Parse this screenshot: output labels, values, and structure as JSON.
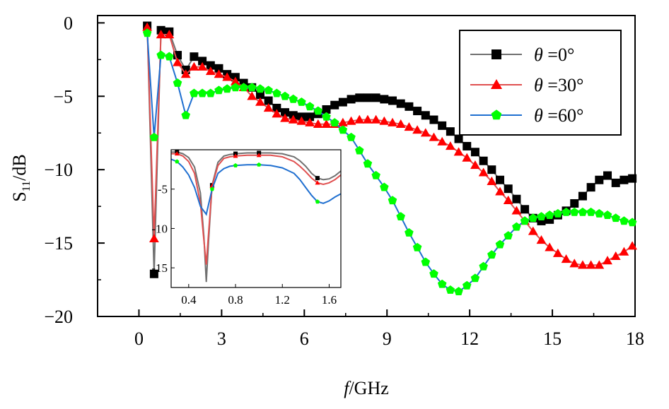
{
  "chart_data": {
    "type": "line",
    "xlabel_italic": "f",
    "xlabel_rest": "/GHz",
    "ylabel_main": "S",
    "ylabel_sub": "11",
    "ylabel_rest": "/dB",
    "xlim": [
      -1.5,
      18
    ],
    "ylim": [
      -20,
      0.5
    ],
    "xticks": [
      0,
      3,
      6,
      9,
      12,
      15,
      18
    ],
    "yticks": [
      0,
      -5,
      -10,
      -15,
      -20
    ],
    "xtick_labels": [
      "0",
      "3",
      "6",
      "9",
      "12",
      "15",
      "18"
    ],
    "ytick_labels": [
      "0",
      "−5",
      "−10",
      "−15",
      "−20"
    ],
    "legend_position": "top-right",
    "legend": [
      {
        "theta": "θ",
        "value": " =0°"
      },
      {
        "theta": "θ",
        "value": " =30°"
      },
      {
        "theta": "θ",
        "value": " =60°"
      }
    ],
    "series": [
      {
        "name": "θ =0°",
        "line_color": "#707070",
        "marker_color": "#000000",
        "marker": "square",
        "x": [
          0.3,
          0.55,
          0.8,
          1.1,
          1.4,
          1.7,
          2.0,
          2.3,
          2.6,
          2.9,
          3.2,
          3.5,
          3.8,
          4.1,
          4.4,
          4.7,
          5.0,
          5.3,
          5.6,
          5.9,
          6.2,
          6.5,
          6.8,
          7.1,
          7.4,
          7.7,
          8.0,
          8.3,
          8.6,
          8.9,
          9.2,
          9.5,
          9.8,
          10.1,
          10.4,
          10.7,
          11.0,
          11.3,
          11.6,
          11.9,
          12.2,
          12.5,
          12.8,
          13.1,
          13.4,
          13.7,
          14.0,
          14.3,
          14.6,
          14.9,
          15.2,
          15.5,
          15.8,
          16.1,
          16.4,
          16.7,
          17.0,
          17.3,
          17.6,
          17.9
        ],
        "y": [
          -0.2,
          -17.1,
          -0.5,
          -0.6,
          -2.2,
          -3.2,
          -2.3,
          -2.6,
          -2.9,
          -3.1,
          -3.5,
          -3.7,
          -4.1,
          -4.4,
          -4.9,
          -5.3,
          -5.8,
          -6.1,
          -6.3,
          -6.4,
          -6.4,
          -6.2,
          -5.9,
          -5.6,
          -5.4,
          -5.2,
          -5.1,
          -5.1,
          -5.1,
          -5.2,
          -5.3,
          -5.5,
          -5.7,
          -6.0,
          -6.3,
          -6.6,
          -7.0,
          -7.4,
          -7.9,
          -8.4,
          -8.8,
          -9.4,
          -10.0,
          -10.7,
          -11.3,
          -12.0,
          -12.7,
          -13.3,
          -13.5,
          -13.4,
          -13.1,
          -12.8,
          -12.3,
          -11.8,
          -11.2,
          -10.7,
          -10.4,
          -10.9,
          -10.7,
          -10.6
        ]
      },
      {
        "name": "θ =30°",
        "line_color": "#e05050",
        "marker_color": "#ff0000",
        "marker": "triangle",
        "x": [
          0.3,
          0.55,
          0.8,
          1.1,
          1.4,
          1.7,
          2.0,
          2.3,
          2.6,
          2.9,
          3.2,
          3.5,
          3.8,
          4.1,
          4.4,
          4.7,
          5.0,
          5.3,
          5.6,
          5.9,
          6.2,
          6.5,
          6.8,
          7.1,
          7.4,
          7.7,
          8.0,
          8.3,
          8.6,
          8.9,
          9.2,
          9.5,
          9.8,
          10.1,
          10.4,
          10.7,
          11.0,
          11.3,
          11.6,
          11.9,
          12.2,
          12.5,
          12.8,
          13.1,
          13.4,
          13.7,
          14.0,
          14.3,
          14.6,
          14.9,
          15.2,
          15.5,
          15.8,
          16.1,
          16.4,
          16.7,
          17.0,
          17.3,
          17.6,
          17.9
        ],
        "y": [
          -0.3,
          -14.7,
          -0.8,
          -0.8,
          -2.7,
          -3.5,
          -3.0,
          -3.0,
          -3.3,
          -3.5,
          -3.7,
          -4.0,
          -4.4,
          -5.0,
          -5.4,
          -5.8,
          -6.2,
          -6.5,
          -6.6,
          -6.7,
          -6.8,
          -6.9,
          -6.9,
          -6.9,
          -6.8,
          -6.7,
          -6.6,
          -6.6,
          -6.6,
          -6.7,
          -6.8,
          -6.9,
          -7.1,
          -7.3,
          -7.5,
          -7.8,
          -8.1,
          -8.4,
          -8.8,
          -9.2,
          -9.7,
          -10.2,
          -10.8,
          -11.5,
          -12.1,
          -12.8,
          -13.5,
          -14.2,
          -14.8,
          -15.3,
          -15.7,
          -16.1,
          -16.4,
          -16.5,
          -16.5,
          -16.5,
          -16.2,
          -15.9,
          -15.6,
          -15.2
        ]
      },
      {
        "name": "θ =60°",
        "line_color": "#1f6fd0",
        "marker_color": "#00ff00",
        "marker": "pentagon",
        "x": [
          0.3,
          0.55,
          0.8,
          1.1,
          1.4,
          1.7,
          2.0,
          2.3,
          2.6,
          2.9,
          3.2,
          3.5,
          3.8,
          4.1,
          4.4,
          4.7,
          5.0,
          5.3,
          5.6,
          5.9,
          6.2,
          6.5,
          6.8,
          7.1,
          7.4,
          7.7,
          8.0,
          8.3,
          8.6,
          8.9,
          9.2,
          9.5,
          9.8,
          10.1,
          10.4,
          10.7,
          11.0,
          11.3,
          11.6,
          11.9,
          12.2,
          12.5,
          12.8,
          13.1,
          13.4,
          13.7,
          14.0,
          14.3,
          14.6,
          14.9,
          15.2,
          15.5,
          15.8,
          16.1,
          16.4,
          16.7,
          17.0,
          17.3,
          17.6,
          17.9
        ],
        "y": [
          -0.7,
          -7.8,
          -2.2,
          -2.3,
          -4.1,
          -6.3,
          -4.8,
          -4.8,
          -4.8,
          -4.6,
          -4.5,
          -4.4,
          -4.4,
          -4.4,
          -4.5,
          -4.6,
          -4.8,
          -5.0,
          -5.2,
          -5.4,
          -5.7,
          -6.0,
          -6.4,
          -6.8,
          -7.3,
          -7.8,
          -8.7,
          -9.6,
          -10.4,
          -11.2,
          -12.1,
          -13.2,
          -14.3,
          -15.3,
          -16.3,
          -17.1,
          -17.8,
          -18.2,
          -18.3,
          -17.9,
          -17.4,
          -16.6,
          -15.8,
          -15.1,
          -14.5,
          -13.9,
          -13.5,
          -13.3,
          -13.2,
          -13.1,
          -13.0,
          -12.9,
          -12.9,
          -12.9,
          -12.9,
          -13.0,
          -13.1,
          -13.3,
          -13.5,
          -13.6
        ]
      }
    ],
    "inset": {
      "xlim": [
        0.25,
        1.7
      ],
      "ylim": [
        -17.5,
        0
      ],
      "xticks": [
        0.4,
        0.8,
        1.2,
        1.6
      ],
      "yticks": [
        -5,
        -10,
        -15
      ],
      "xtick_labels": [
        "0.4",
        "0.8",
        "1.2",
        "1.6"
      ],
      "ytick_labels": [
        "-5",
        "-10",
        "-15"
      ],
      "series": [
        {
          "line_color": "#707070",
          "marker_color": "#000000",
          "marker": "square",
          "x": [
            0.25,
            0.3,
            0.35,
            0.4,
            0.45,
            0.5,
            0.53,
            0.55,
            0.57,
            0.6,
            0.65,
            0.7,
            0.75,
            0.8,
            0.9,
            1.0,
            1.1,
            1.2,
            1.3,
            1.35,
            1.4,
            1.45,
            1.5,
            1.55,
            1.6,
            1.65,
            1.7
          ],
          "y": [
            -0.3,
            -0.3,
            -0.5,
            -1.0,
            -2.2,
            -5.5,
            -11.0,
            -16.8,
            -11.5,
            -4.5,
            -1.6,
            -0.8,
            -0.6,
            -0.5,
            -0.4,
            -0.4,
            -0.4,
            -0.5,
            -0.9,
            -1.4,
            -2.1,
            -3.0,
            -3.6,
            -3.8,
            -3.7,
            -3.3,
            -2.7
          ],
          "marker_x": [
            0.3,
            0.6,
            0.8,
            1.0,
            1.5
          ]
        },
        {
          "line_color": "#e05050",
          "marker_color": "#ff0000",
          "marker": "triangle",
          "x": [
            0.25,
            0.3,
            0.35,
            0.4,
            0.45,
            0.5,
            0.53,
            0.55,
            0.57,
            0.6,
            0.65,
            0.7,
            0.75,
            0.8,
            0.9,
            1.0,
            1.1,
            1.2,
            1.3,
            1.35,
            1.4,
            1.45,
            1.5,
            1.55,
            1.6,
            1.65,
            1.7
          ],
          "y": [
            -0.5,
            -0.5,
            -0.8,
            -1.5,
            -3.0,
            -6.8,
            -11.5,
            -14.6,
            -10.5,
            -4.6,
            -2.0,
            -1.1,
            -0.9,
            -0.8,
            -0.7,
            -0.7,
            -0.7,
            -0.9,
            -1.5,
            -2.1,
            -2.8,
            -3.6,
            -4.2,
            -4.4,
            -4.2,
            -3.8,
            -3.2
          ],
          "marker_x": [
            0.3,
            0.6,
            0.8,
            1.0,
            1.5
          ]
        },
        {
          "line_color": "#1f6fd0",
          "marker_color": "#00ff00",
          "marker": "pentagon",
          "x": [
            0.25,
            0.3,
            0.35,
            0.4,
            0.45,
            0.5,
            0.55,
            0.6,
            0.65,
            0.7,
            0.75,
            0.8,
            0.9,
            1.0,
            1.1,
            1.2,
            1.3,
            1.35,
            1.4,
            1.45,
            1.5,
            1.55,
            1.6,
            1.65,
            1.7
          ],
          "y": [
            -1.2,
            -1.5,
            -2.2,
            -3.2,
            -4.8,
            -7.2,
            -8.2,
            -5.0,
            -3.0,
            -2.4,
            -2.1,
            -2.0,
            -1.9,
            -1.9,
            -2.0,
            -2.3,
            -3.0,
            -3.8,
            -4.8,
            -5.8,
            -6.6,
            -6.8,
            -6.5,
            -6.0,
            -5.6
          ],
          "marker_x": [
            0.3,
            0.6,
            0.8,
            1.0,
            1.5
          ]
        }
      ]
    }
  }
}
